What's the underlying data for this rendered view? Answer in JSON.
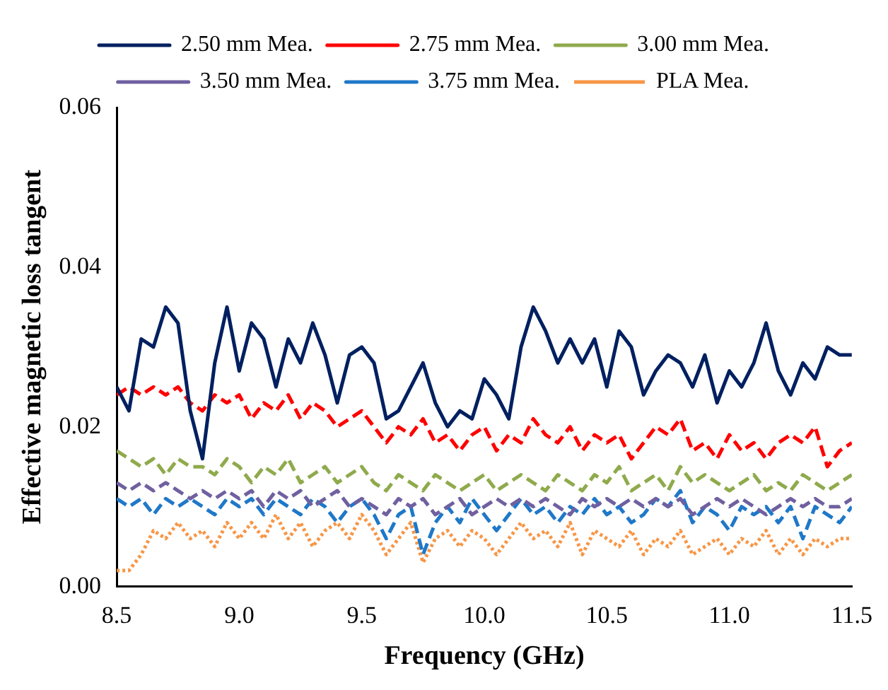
{
  "chart_data": {
    "type": "line",
    "xlabel": "Frequency (GHz)",
    "ylabel": "Effective magnetic loss tangent",
    "x": [
      8.5,
      8.55,
      8.6,
      8.65,
      8.7,
      8.75,
      8.8,
      8.85,
      8.9,
      8.95,
      9.0,
      9.05,
      9.1,
      9.15,
      9.2,
      9.25,
      9.3,
      9.35,
      9.4,
      9.45,
      9.5,
      9.55,
      9.6,
      9.65,
      9.7,
      9.75,
      9.8,
      9.85,
      9.9,
      9.95,
      10.0,
      10.05,
      10.1,
      10.15,
      10.2,
      10.25,
      10.3,
      10.35,
      10.4,
      10.45,
      10.5,
      10.55,
      10.6,
      10.65,
      10.7,
      10.75,
      10.8,
      10.85,
      10.9,
      10.95,
      11.0,
      11.05,
      11.1,
      11.15,
      11.2,
      11.25,
      11.3,
      11.35,
      11.4,
      11.45,
      11.5
    ],
    "series": [
      {
        "name": "2.50 mm Mea.",
        "color": "#002060",
        "line_style": "solid",
        "values": [
          0.025,
          0.022,
          0.031,
          0.03,
          0.035,
          0.033,
          0.022,
          0.016,
          0.028,
          0.035,
          0.027,
          0.033,
          0.031,
          0.025,
          0.031,
          0.028,
          0.033,
          0.029,
          0.023,
          0.029,
          0.03,
          0.028,
          0.021,
          0.022,
          0.025,
          0.028,
          0.023,
          0.02,
          0.022,
          0.021,
          0.026,
          0.024,
          0.021,
          0.03,
          0.035,
          0.032,
          0.028,
          0.031,
          0.028,
          0.031,
          0.025,
          0.032,
          0.03,
          0.024,
          0.027,
          0.029,
          0.028,
          0.025,
          0.029,
          0.023,
          0.027,
          0.025,
          0.028,
          0.033,
          0.027,
          0.024,
          0.028,
          0.026,
          0.03,
          0.029,
          0.029
        ]
      },
      {
        "name": "2.75 mm Mea.",
        "color": "#ff0000",
        "line_style": "dashed",
        "values": [
          0.024,
          0.025,
          0.024,
          0.025,
          0.024,
          0.025,
          0.023,
          0.022,
          0.024,
          0.023,
          0.024,
          0.021,
          0.023,
          0.022,
          0.024,
          0.021,
          0.023,
          0.022,
          0.02,
          0.021,
          0.022,
          0.02,
          0.018,
          0.02,
          0.019,
          0.021,
          0.018,
          0.019,
          0.017,
          0.019,
          0.02,
          0.017,
          0.019,
          0.018,
          0.021,
          0.019,
          0.018,
          0.02,
          0.017,
          0.019,
          0.018,
          0.019,
          0.016,
          0.018,
          0.02,
          0.019,
          0.021,
          0.017,
          0.018,
          0.016,
          0.019,
          0.017,
          0.018,
          0.016,
          0.018,
          0.019,
          0.018,
          0.02,
          0.015,
          0.017,
          0.018
        ]
      },
      {
        "name": "3.00 mm Mea.",
        "color": "#8faa4c",
        "line_style": "dashed",
        "values": [
          0.017,
          0.016,
          0.015,
          0.016,
          0.014,
          0.016,
          0.015,
          0.015,
          0.014,
          0.016,
          0.015,
          0.013,
          0.015,
          0.014,
          0.016,
          0.013,
          0.014,
          0.015,
          0.013,
          0.014,
          0.015,
          0.013,
          0.012,
          0.014,
          0.013,
          0.012,
          0.014,
          0.013,
          0.012,
          0.013,
          0.014,
          0.012,
          0.013,
          0.014,
          0.013,
          0.012,
          0.014,
          0.013,
          0.012,
          0.014,
          0.013,
          0.015,
          0.012,
          0.013,
          0.014,
          0.012,
          0.015,
          0.013,
          0.014,
          0.013,
          0.012,
          0.013,
          0.014,
          0.012,
          0.013,
          0.012,
          0.014,
          0.013,
          0.012,
          0.013,
          0.014
        ]
      },
      {
        "name": "3.50 mm Mea.",
        "color": "#7060a0",
        "line_style": "dashed",
        "values": [
          0.013,
          0.012,
          0.013,
          0.012,
          0.013,
          0.012,
          0.011,
          0.012,
          0.011,
          0.012,
          0.011,
          0.012,
          0.01,
          0.012,
          0.011,
          0.012,
          0.01,
          0.011,
          0.012,
          0.01,
          0.011,
          0.01,
          0.009,
          0.011,
          0.01,
          0.011,
          0.009,
          0.01,
          0.011,
          0.009,
          0.01,
          0.011,
          0.01,
          0.011,
          0.01,
          0.011,
          0.01,
          0.009,
          0.011,
          0.01,
          0.011,
          0.01,
          0.011,
          0.01,
          0.011,
          0.01,
          0.011,
          0.009,
          0.01,
          0.011,
          0.01,
          0.011,
          0.01,
          0.009,
          0.01,
          0.011,
          0.01,
          0.011,
          0.01,
          0.01,
          0.011
        ]
      },
      {
        "name": "3.75 mm Mea.",
        "color": "#1f78c8",
        "line_style": "dashed",
        "values": [
          0.011,
          0.01,
          0.011,
          0.009,
          0.011,
          0.01,
          0.011,
          0.01,
          0.009,
          0.011,
          0.01,
          0.011,
          0.009,
          0.011,
          0.01,
          0.009,
          0.011,
          0.01,
          0.008,
          0.01,
          0.011,
          0.009,
          0.006,
          0.009,
          0.01,
          0.004,
          0.008,
          0.01,
          0.008,
          0.011,
          0.009,
          0.007,
          0.009,
          0.011,
          0.009,
          0.01,
          0.008,
          0.01,
          0.009,
          0.011,
          0.009,
          0.01,
          0.008,
          0.009,
          0.011,
          0.01,
          0.012,
          0.008,
          0.01,
          0.009,
          0.007,
          0.01,
          0.009,
          0.01,
          0.008,
          0.01,
          0.006,
          0.01,
          0.009,
          0.008,
          0.01
        ]
      },
      {
        "name": "PLA Mea.",
        "color": "#f79646",
        "line_style": "dotted",
        "values": [
          0.002,
          0.002,
          0.004,
          0.007,
          0.006,
          0.008,
          0.006,
          0.007,
          0.005,
          0.008,
          0.006,
          0.008,
          0.006,
          0.009,
          0.006,
          0.008,
          0.005,
          0.007,
          0.008,
          0.006,
          0.009,
          0.007,
          0.004,
          0.006,
          0.008,
          0.003,
          0.006,
          0.007,
          0.005,
          0.007,
          0.006,
          0.004,
          0.006,
          0.008,
          0.006,
          0.007,
          0.005,
          0.008,
          0.004,
          0.007,
          0.006,
          0.005,
          0.007,
          0.004,
          0.006,
          0.005,
          0.007,
          0.004,
          0.005,
          0.006,
          0.004,
          0.006,
          0.005,
          0.007,
          0.004,
          0.006,
          0.004,
          0.006,
          0.005,
          0.006,
          0.006
        ]
      }
    ],
    "xlim": [
      8.5,
      11.5
    ],
    "xticks": [
      8.5,
      {
        "value": 9,
        "label": "9.0"
      },
      9.5,
      {
        "value": 10,
        "label": "10.0"
      },
      10.5,
      {
        "value": 11,
        "label": "11.0"
      },
      11.5
    ],
    "ylim": [
      0,
      0.06
    ],
    "yticks": [
      {
        "value": 0,
        "label": "0.00"
      },
      0.02,
      0.04,
      0.06
    ],
    "grid": false,
    "legend": "top",
    "marker": "none"
  }
}
